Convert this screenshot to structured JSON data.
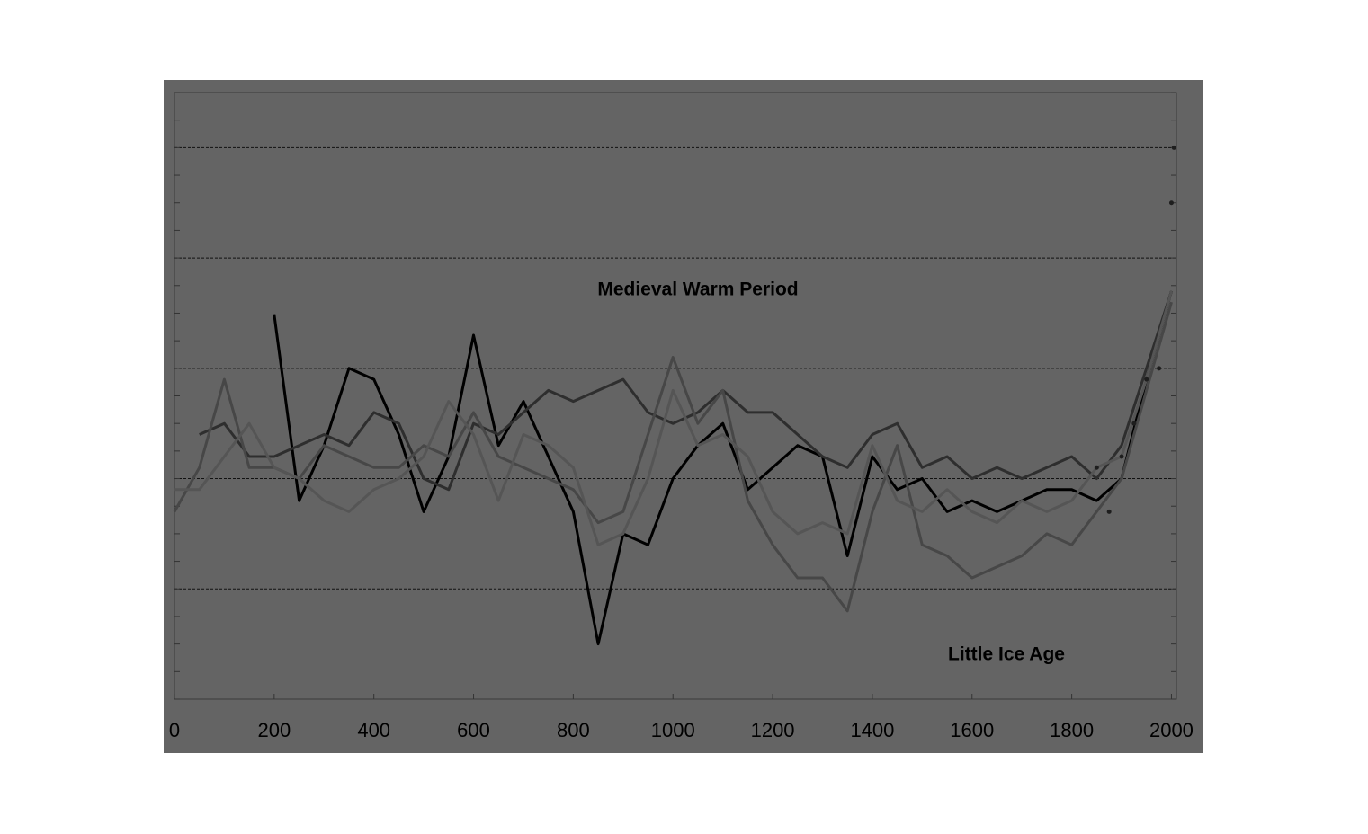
{
  "chart_data": {
    "type": "line",
    "annotations": [
      "Medieval Warm Period",
      "Little Ice Age"
    ],
    "x": [
      0,
      50,
      100,
      150,
      200,
      250,
      300,
      350,
      400,
      450,
      500,
      550,
      600,
      650,
      700,
      750,
      800,
      850,
      900,
      950,
      1000,
      1050,
      1100,
      1150,
      1200,
      1250,
      1300,
      1350,
      1400,
      1450,
      1500,
      1550,
      1600,
      1650,
      1700,
      1750,
      1800,
      1850,
      1900,
      1950,
      2000
    ],
    "series": [
      {
        "color": "#000000",
        "values": [
          null,
          null,
          null,
          null,
          1.49,
          -0.2,
          0.3,
          1.0,
          0.9,
          0.4,
          -0.3,
          0.2,
          1.3,
          0.3,
          0.7,
          0.2,
          -0.3,
          -1.5,
          -0.5,
          -0.6,
          0.0,
          0.3,
          0.5,
          -0.1,
          0.1,
          0.3,
          0.2,
          -0.7,
          0.2,
          -0.1,
          0.0,
          -0.3,
          -0.2,
          -0.3,
          -0.2,
          -0.1,
          -0.1,
          -0.2,
          0.0,
          0.9,
          1.7
        ]
      },
      {
        "color": "#2e2e2e",
        "values": [
          null,
          0.4,
          0.5,
          0.2,
          0.2,
          0.3,
          0.4,
          0.3,
          0.6,
          0.5,
          0.0,
          -0.1,
          0.5,
          0.4,
          0.6,
          0.8,
          0.7,
          0.8,
          0.9,
          0.6,
          0.5,
          0.6,
          0.8,
          0.6,
          0.6,
          0.4,
          0.2,
          0.1,
          0.4,
          0.5,
          0.1,
          0.2,
          0.0,
          0.1,
          0.0,
          0.1,
          0.2,
          0.0,
          0.3,
          1.0,
          1.7
        ]
      },
      {
        "color": "#474747",
        "values": [
          -0.3,
          0.1,
          0.9,
          0.1,
          0.1,
          0.0,
          0.3,
          0.2,
          0.1,
          0.1,
          0.3,
          0.2,
          0.6,
          0.2,
          0.1,
          0.0,
          -0.1,
          -0.4,
          -0.3,
          0.4,
          1.1,
          0.5,
          0.8,
          -0.2,
          -0.6,
          -0.9,
          -0.9,
          -1.2,
          -0.3,
          0.3,
          -0.6,
          -0.7,
          -0.9,
          -0.8,
          -0.7,
          -0.5,
          -0.6,
          -0.3,
          0.0,
          0.8,
          1.6
        ]
      },
      {
        "color": "#555555",
        "values": [
          -0.1,
          -0.1,
          0.2,
          0.5,
          0.1,
          0.0,
          -0.2,
          -0.3,
          -0.1,
          0.0,
          0.2,
          0.7,
          0.4,
          -0.2,
          0.4,
          0.3,
          0.1,
          -0.6,
          -0.5,
          0.0,
          0.8,
          0.3,
          0.4,
          0.2,
          -0.3,
          -0.5,
          -0.4,
          -0.5,
          0.3,
          -0.2,
          -0.3,
          -0.1,
          -0.3,
          -0.4,
          -0.2,
          -0.3,
          -0.2,
          0.1,
          0.2,
          0.9,
          1.7
        ]
      },
      {
        "color": "#1e1e1e",
        "style": "dotted",
        "x": [
          1850,
          1875,
          1900,
          1925,
          1950,
          1975,
          2000,
          2005
        ],
        "values": [
          0.1,
          -0.3,
          0.2,
          0.5,
          0.9,
          1.0,
          2.5,
          3.0
        ]
      }
    ],
    "xlim": [
      0,
      2010
    ],
    "xticks": [
      0,
      200,
      400,
      600,
      800,
      1000,
      1200,
      1400,
      1600,
      1800,
      2000
    ],
    "ylim": [
      -2,
      3.5
    ],
    "yticks": [
      -2,
      -1.75,
      -1.5,
      -1.25,
      -1,
      -0.75,
      -0.5,
      -0.25,
      0,
      0.25,
      0.5,
      0.75,
      1,
      1.25,
      1.5,
      1.75,
      2,
      2.25,
      2.5,
      2.75,
      3,
      3.25,
      3.5
    ],
    "grid_lines": [
      -1,
      0,
      1,
      2,
      3
    ],
    "grid": true
  }
}
